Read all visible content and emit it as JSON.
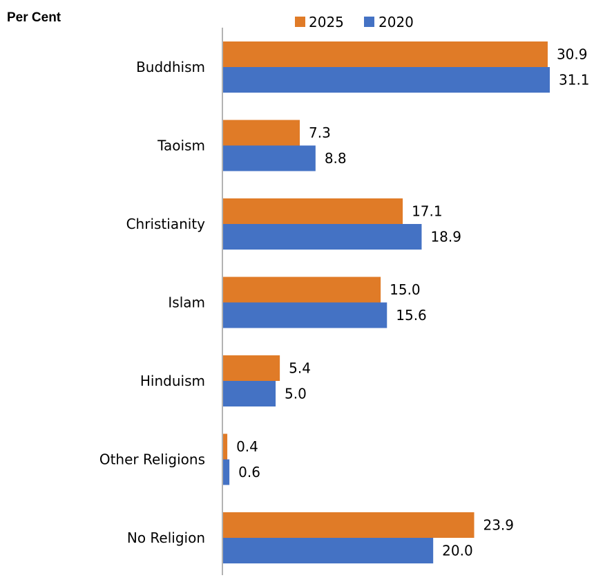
{
  "chart_data": {
    "type": "bar",
    "orientation": "horizontal",
    "ylabel": "Per Cent",
    "categories": [
      "Buddhism",
      "Taoism",
      "Christianity",
      "Islam",
      "Hinduism",
      "Other Religions",
      "No Religion"
    ],
    "series": [
      {
        "name": "2025",
        "color": "#e07b27",
        "values": [
          30.9,
          7.3,
          17.1,
          15.0,
          5.4,
          0.4,
          23.9
        ],
        "labels": [
          "30.9",
          "7.3",
          "17.1",
          "15.0",
          "5.4",
          "0.4",
          "23.9"
        ]
      },
      {
        "name": "2020",
        "color": "#4472c4",
        "values": [
          31.1,
          8.8,
          18.9,
          15.6,
          5.0,
          0.6,
          20.0
        ],
        "labels": [
          "31.1",
          "8.8",
          "18.9",
          "15.6",
          "5.0",
          "0.6",
          "20.0"
        ]
      }
    ],
    "xlim": [
      0,
      31.1
    ],
    "legend": "top",
    "grid": false
  }
}
